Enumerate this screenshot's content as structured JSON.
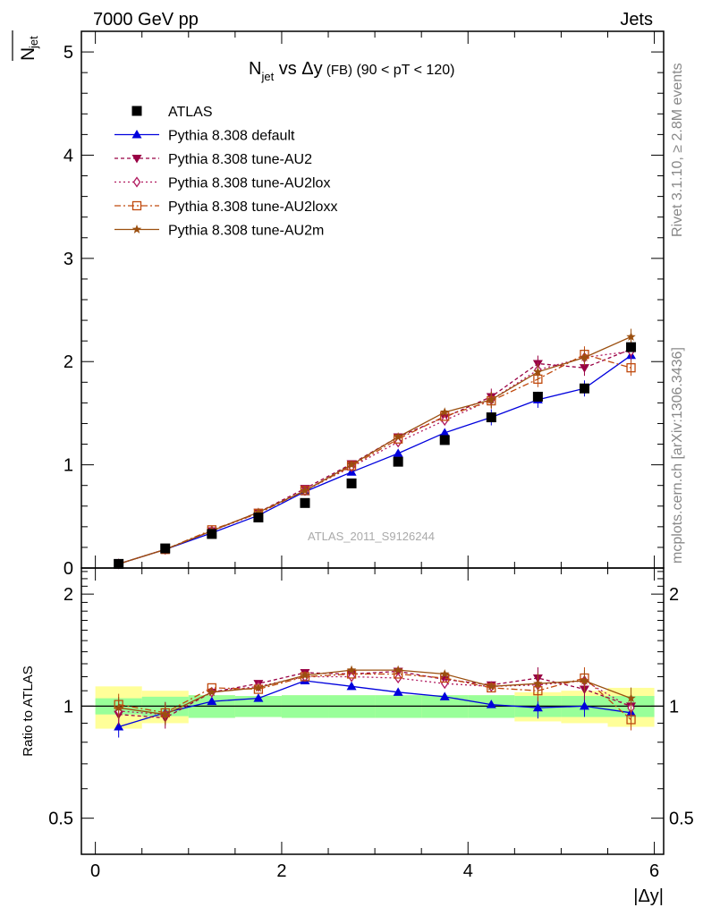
{
  "header": {
    "left": "7000 GeV pp",
    "right": "Jets",
    "watermark": "ATLAS_2011_S9126244",
    "side_top": "Rivet 3.1.10, ≥ 2.8M events",
    "side_bottom": "mcplots.cern.ch [arXiv:1306.3436]"
  },
  "colors": {
    "ATLAS": "#000000",
    "default": "#0000dd",
    "AU2": "#990044",
    "AU2lox": "#b0185e",
    "AU2loxx": "#c04a0e",
    "AU2m": "#9b4f0f",
    "band_inner": "#99ff99",
    "band_outer": "#ffff99"
  },
  "chart_data": [
    {
      "type": "line",
      "title_parts": {
        "main": "N",
        "sub": "jet",
        "vs": " vs Δy",
        "small": " (FB)",
        "range": " (90 < pT < 120)"
      },
      "ylabel_parts": {
        "main": "N",
        "sub": "jet"
      },
      "xlim": [
        -0.15,
        6.1
      ],
      "ylim": [
        0,
        5.2
      ],
      "yticks": [
        "0",
        "1",
        "2",
        "3",
        "4",
        "5"
      ],
      "x": [
        0.25,
        0.75,
        1.25,
        1.75,
        2.25,
        2.75,
        3.25,
        3.75,
        4.25,
        4.75,
        5.25,
        5.75
      ],
      "data": {
        "name": "ATLAS",
        "values": [
          0.04,
          0.19,
          0.33,
          0.49,
          0.63,
          0.82,
          1.03,
          1.24,
          1.46,
          1.66,
          1.74,
          2.14
        ]
      },
      "series": [
        {
          "name": "Pythia 8.308 default",
          "key": "default",
          "marker": "triangle-up",
          "dash": "",
          "values": [
            0.04,
            0.18,
            0.34,
            0.51,
            0.74,
            0.93,
            1.11,
            1.31,
            1.46,
            1.63,
            1.74,
            2.06
          ]
        },
        {
          "name": "Pythia 8.308 tune-AU2",
          "key": "AU2",
          "marker": "triangle-down",
          "dash": "4,3",
          "values": [
            0.04,
            0.18,
            0.36,
            0.54,
            0.77,
            1.01,
            1.27,
            1.46,
            1.66,
            1.98,
            1.94,
            2.12
          ]
        },
        {
          "name": "Pythia 8.308 tune-AU2lox",
          "key": "AU2lox",
          "marker": "diamond-open",
          "dash": "2,3",
          "values": [
            0.04,
            0.18,
            0.36,
            0.53,
            0.75,
            0.98,
            1.22,
            1.43,
            1.63,
            1.92,
            2.04,
            2.1
          ]
        },
        {
          "name": "Pythia 8.308 tune-AU2loxx",
          "key": "AU2loxx",
          "marker": "square-open",
          "dash": "7,3,2,3",
          "values": [
            0.04,
            0.18,
            0.37,
            0.53,
            0.75,
            0.99,
            1.25,
            1.47,
            1.62,
            1.83,
            2.07,
            1.94
          ]
        },
        {
          "name": "Pythia 8.308 tune-AU2m",
          "key": "AU2m",
          "marker": "star",
          "dash": "",
          "values": [
            0.04,
            0.18,
            0.36,
            0.54,
            0.75,
            1.0,
            1.27,
            1.51,
            1.63,
            1.9,
            2.04,
            2.24
          ]
        }
      ]
    },
    {
      "type": "line",
      "ylabel": "Ratio to ATLAS",
      "xlabel": "|Δy|",
      "xlim": [
        -0.15,
        6.1
      ],
      "xticks": [
        "0",
        "2",
        "4",
        "6"
      ],
      "ylim_log": [
        0.4,
        2.35
      ],
      "yticks": [
        "0.5",
        "1",
        "2"
      ],
      "band_inner": [
        0.05,
        0.06,
        0.07,
        0.065,
        0.07,
        0.07,
        0.07,
        0.07,
        0.07,
        0.065,
        0.065,
        0.065
      ],
      "band_outer": [
        0.13,
        0.1,
        0.07,
        0.065,
        0.07,
        0.07,
        0.07,
        0.07,
        0.07,
        0.09,
        0.1,
        0.12
      ],
      "series": [
        {
          "key": "default",
          "values": [
            0.88,
            0.96,
            1.03,
            1.05,
            1.17,
            1.13,
            1.09,
            1.06,
            1.01,
            0.99,
            1.0,
            0.96
          ]
        },
        {
          "key": "AU2",
          "values": [
            0.95,
            0.93,
            1.09,
            1.15,
            1.23,
            1.22,
            1.24,
            1.18,
            1.14,
            1.19,
            1.11,
            1.0
          ]
        },
        {
          "key": "AU2lox",
          "values": [
            0.97,
            0.95,
            1.09,
            1.13,
            1.2,
            1.2,
            1.19,
            1.15,
            1.13,
            1.14,
            1.17,
            0.99
          ]
        },
        {
          "key": "AU2loxx",
          "values": [
            1.01,
            0.96,
            1.12,
            1.11,
            1.2,
            1.22,
            1.22,
            1.19,
            1.12,
            1.1,
            1.19,
            0.92
          ]
        },
        {
          "key": "AU2m",
          "values": [
            0.99,
            0.95,
            1.09,
            1.12,
            1.21,
            1.25,
            1.25,
            1.22,
            1.13,
            1.15,
            1.17,
            1.05
          ]
        }
      ]
    }
  ]
}
